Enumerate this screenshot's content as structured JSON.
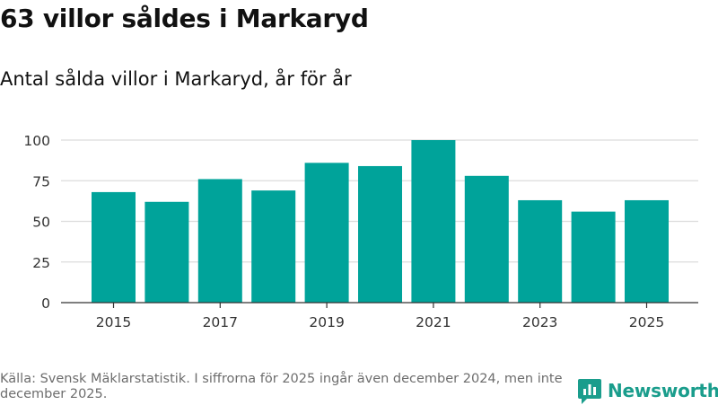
{
  "title": "63 villor såldes i Markaryd",
  "subtitle": "Antal sålda villor i Markaryd, år för år",
  "source": "Källa: Svensk Mäklarstatistik. I siffrorna för 2025 ingår även december 2024, men inte december 2025.",
  "brand": {
    "name": "Newsworthy",
    "icon": "bar-chart-logo-icon",
    "color": "#1a9d8c"
  },
  "colors": {
    "bar": "#00a39a",
    "grid": "#dcdcdc",
    "axis": "#333333",
    "tick_text": "#333333"
  },
  "chart_data": {
    "type": "bar",
    "title": "63 villor såldes i Markaryd",
    "subtitle": "Antal sålda villor i Markaryd, år för år",
    "xlabel": "",
    "ylabel": "",
    "categories": [
      2015,
      2016,
      2017,
      2018,
      2019,
      2020,
      2021,
      2022,
      2023,
      2024,
      2025
    ],
    "values": [
      68,
      62,
      76,
      69,
      86,
      84,
      100,
      78,
      63,
      56,
      63
    ],
    "ylim": [
      0,
      100
    ],
    "yticks": [
      0,
      25,
      50,
      75,
      100
    ],
    "xticks": [
      2015,
      2017,
      2019,
      2021,
      2023,
      2025
    ],
    "grid": true,
    "legend": "none"
  }
}
